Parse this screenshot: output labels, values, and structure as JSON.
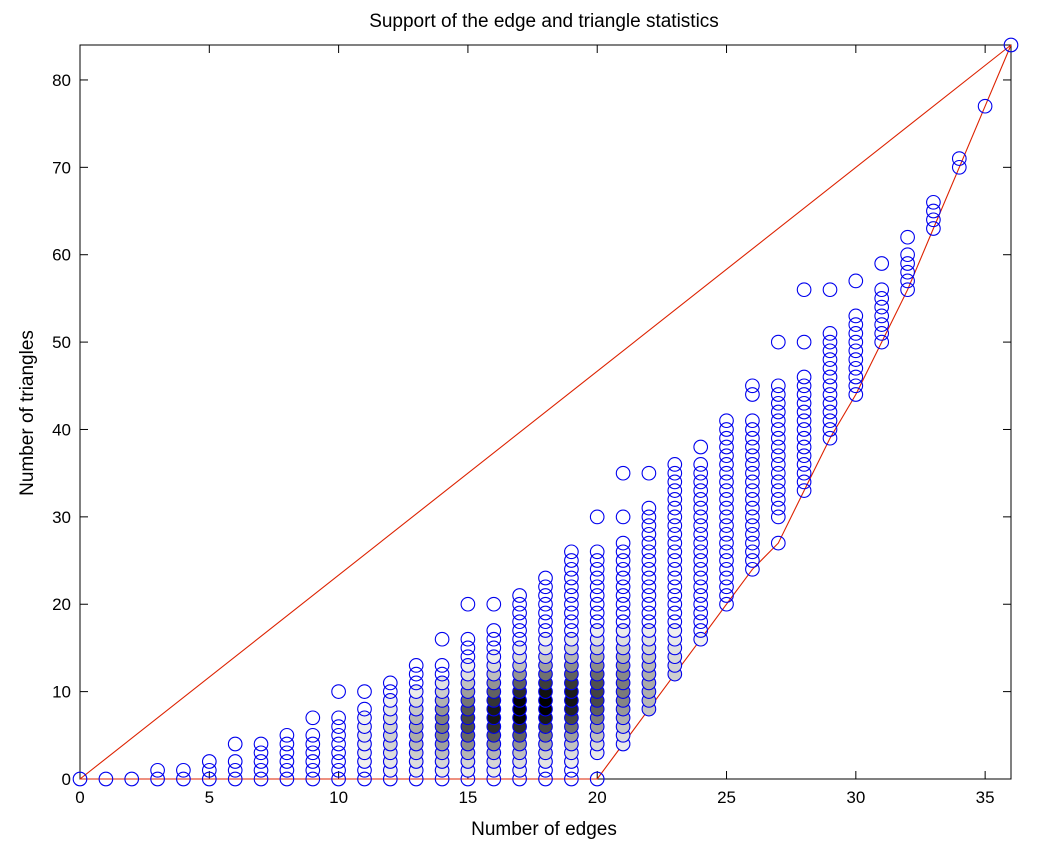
{
  "chart_data": {
    "type": "scatter",
    "title": "Support of the edge and triangle statistics",
    "xlabel": "Number of edges",
    "ylabel": "Number of triangles",
    "xlim": [
      0,
      36
    ],
    "ylim": [
      0,
      84
    ],
    "xticks": [
      "0",
      "5",
      "10",
      "15",
      "20",
      "25",
      "30",
      "35"
    ],
    "yticks": [
      "0",
      "10",
      "20",
      "30",
      "40",
      "50",
      "60",
      "70",
      "80"
    ],
    "grid": false,
    "legend": "none",
    "colors": {
      "marker_edge": "#0000ee",
      "hull_line": "#dd2200",
      "axes": "#000000",
      "density_dark": "#000000",
      "density_light": "#ffffff"
    },
    "hull": {
      "name": "",
      "points": [
        [
          0,
          0
        ],
        [
          36,
          84
        ],
        [
          35,
          77
        ],
        [
          34,
          70
        ],
        [
          33,
          63
        ],
        [
          32,
          56
        ],
        [
          31,
          50
        ],
        [
          30,
          44
        ],
        [
          29,
          39
        ],
        [
          28,
          33
        ],
        [
          27,
          27
        ],
        [
          26,
          24
        ],
        [
          25,
          20
        ],
        [
          24,
          16
        ],
        [
          23,
          12
        ],
        [
          22,
          8
        ],
        [
          21,
          4
        ],
        [
          20,
          0
        ],
        [
          0,
          0
        ]
      ]
    },
    "columns": [
      {
        "x": 0,
        "ymin": 0,
        "ymax": 0
      },
      {
        "x": 1,
        "ymin": 0,
        "ymax": 0
      },
      {
        "x": 2,
        "ymin": 0,
        "ymax": 0
      },
      {
        "x": 3,
        "ymin": 0,
        "ymax": 1
      },
      {
        "x": 4,
        "ymin": 0,
        "ymax": 1
      },
      {
        "x": 5,
        "ymin": 0,
        "ymax": 2
      },
      {
        "x": 6,
        "ymin": 0,
        "ymax": 2,
        "extra": [
          4
        ]
      },
      {
        "x": 7,
        "ymin": 0,
        "ymax": 4
      },
      {
        "x": 8,
        "ymin": 0,
        "ymax": 5
      },
      {
        "x": 9,
        "ymin": 0,
        "ymax": 5,
        "extra": [
          7
        ]
      },
      {
        "x": 10,
        "ymin": 0,
        "ymax": 7,
        "extra": [
          10
        ]
      },
      {
        "x": 11,
        "ymin": 0,
        "ymax": 8,
        "extra": [
          10
        ]
      },
      {
        "x": 12,
        "ymin": 0,
        "ymax": 11
      },
      {
        "x": 13,
        "ymin": 0,
        "ymax": 13
      },
      {
        "x": 14,
        "ymin": 0,
        "ymax": 13,
        "extra": [
          16
        ]
      },
      {
        "x": 15,
        "ymin": 0,
        "ymax": 16,
        "extra": [
          20
        ]
      },
      {
        "x": 16,
        "ymin": 0,
        "ymax": 17,
        "extra": [
          20
        ]
      },
      {
        "x": 17,
        "ymin": 0,
        "ymax": 21
      },
      {
        "x": 18,
        "ymin": 0,
        "ymax": 23
      },
      {
        "x": 19,
        "ymin": 0,
        "ymax": 26
      },
      {
        "x": 20,
        "ymin": 3,
        "ymax": 26,
        "extra": [
          0,
          30
        ]
      },
      {
        "x": 21,
        "ymin": 4,
        "ymax": 27,
        "extra": [
          30,
          35
        ]
      },
      {
        "x": 22,
        "ymin": 8,
        "ymax": 31,
        "extra": [
          35
        ]
      },
      {
        "x": 23,
        "ymin": 12,
        "ymax": 36
      },
      {
        "x": 24,
        "ymin": 16,
        "ymax": 36,
        "extra": [
          38
        ]
      },
      {
        "x": 25,
        "ymin": 20,
        "ymax": 41
      },
      {
        "x": 26,
        "ymin": 24,
        "ymax": 41,
        "extra": [
          44,
          45
        ]
      },
      {
        "x": 27,
        "ymin": 30,
        "ymax": 45,
        "extra": [
          27,
          50
        ]
      },
      {
        "x": 28,
        "ymin": 33,
        "ymax": 46,
        "extra": [
          50,
          56
        ]
      },
      {
        "x": 29,
        "ymin": 39,
        "ymax": 51,
        "extra": [
          56
        ]
      },
      {
        "x": 30,
        "ymin": 44,
        "ymax": 53,
        "extra": [
          57
        ]
      },
      {
        "x": 31,
        "ymin": 50,
        "ymax": 56,
        "extra": [
          59
        ]
      },
      {
        "x": 32,
        "ymin": 56,
        "ymax": 60,
        "extra": [
          62
        ]
      },
      {
        "x": 33,
        "ymin": 63,
        "ymax": 66
      },
      {
        "x": 34,
        "ymin": 70,
        "ymax": 71
      },
      {
        "x": 35,
        "ymin": 77,
        "ymax": 77
      },
      {
        "x": 36,
        "ymin": 84,
        "ymax": 84
      }
    ],
    "density": {
      "center_slope": 0.6,
      "center_offset": -2.2,
      "peak_x": 17.5,
      "x_spread": 4.2,
      "y_spread_base": 2.0,
      "y_spread_slope": 0.13
    }
  }
}
